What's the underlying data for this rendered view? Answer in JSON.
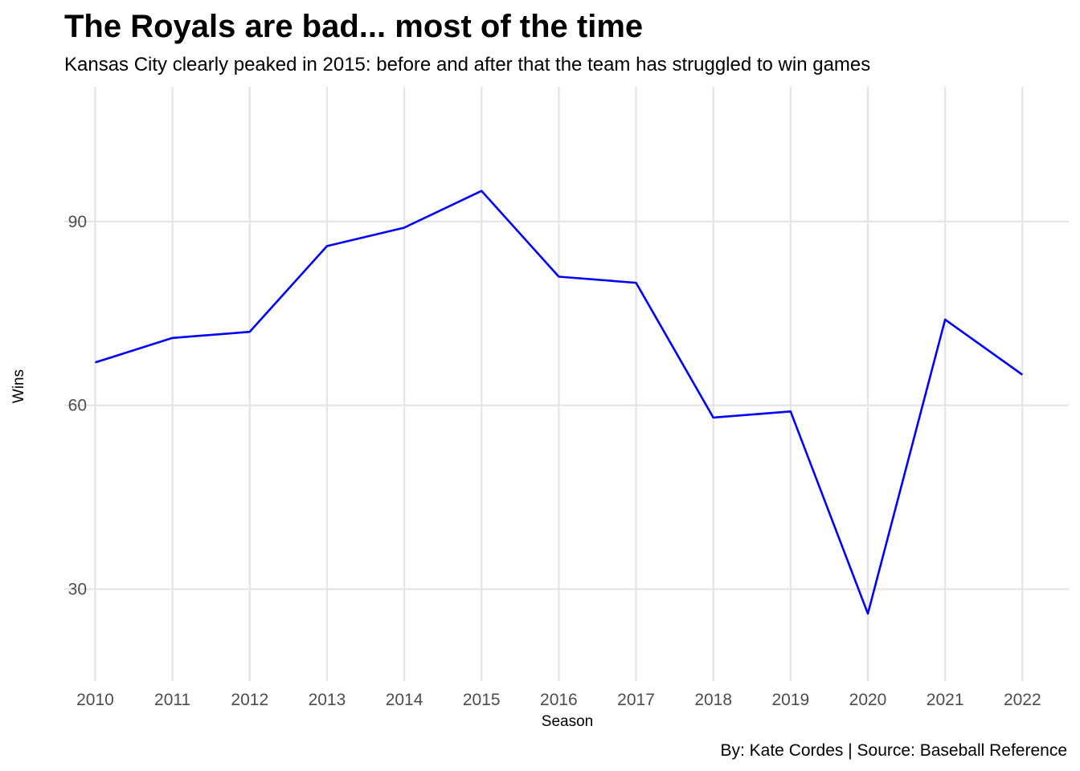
{
  "chart_data": {
    "type": "line",
    "title": "The Royals are bad... most of the time",
    "subtitle": "Kansas City clearly peaked in 2015: before and after that the team has struggled to win games",
    "xlabel": "Season",
    "ylabel": "Wins",
    "caption": "By: Kate Cordes | Source: Baseball Reference",
    "x": [
      2010,
      2011,
      2012,
      2013,
      2014,
      2015,
      2016,
      2017,
      2018,
      2019,
      2020,
      2021,
      2022
    ],
    "series": [
      {
        "values": [
          67,
          71,
          72,
          86,
          89,
          95,
          81,
          80,
          58,
          59,
          26,
          74,
          65
        ]
      }
    ],
    "yticks": [
      30,
      60,
      90
    ],
    "ylim": [
      15,
      112
    ],
    "xlim": [
      2009.6,
      2022.6
    ],
    "line_color": "#0000ff",
    "grid": true,
    "legend": "none"
  }
}
